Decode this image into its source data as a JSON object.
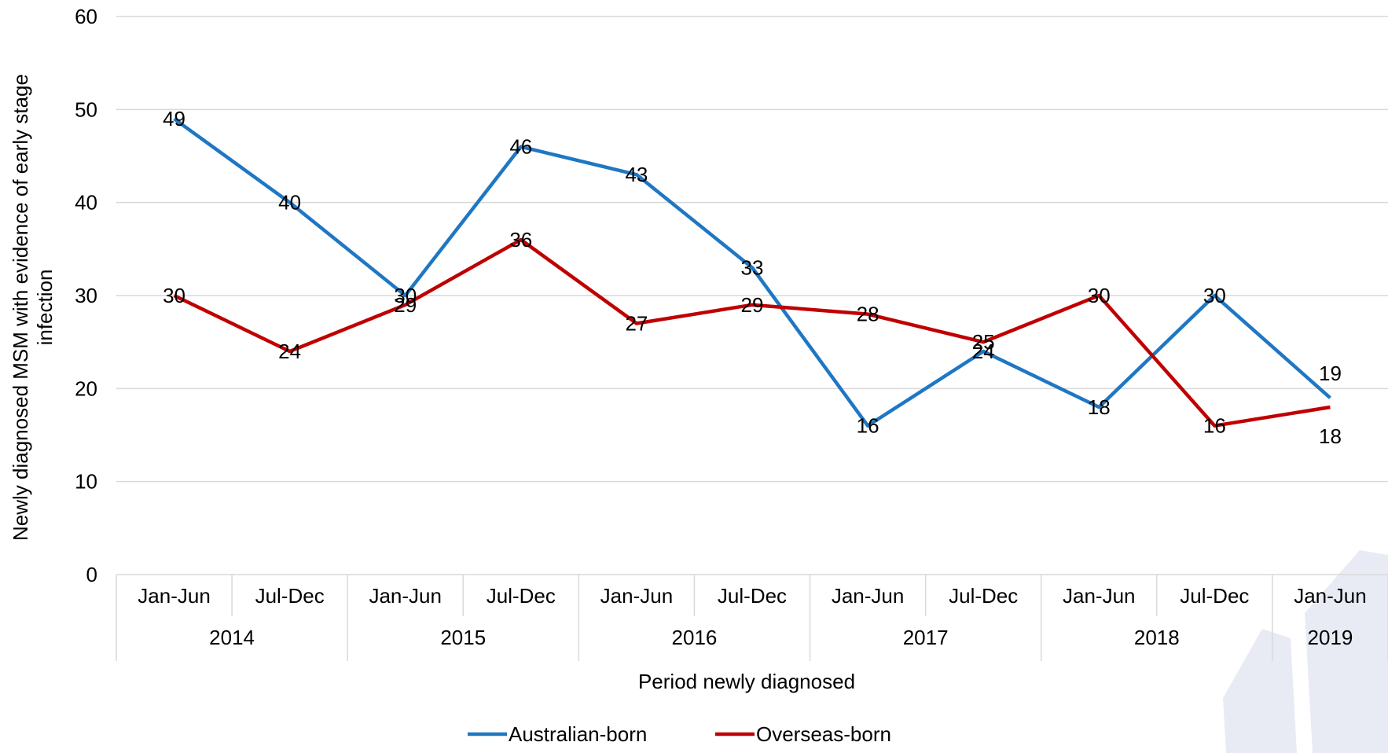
{
  "chart_data": {
    "type": "line",
    "title": "",
    "xlabel": "Period newly diagnosed",
    "ylabel": "Newly diagnosed MSM with evidence of early stage infection",
    "ylim": [
      0,
      60
    ],
    "yticks": [
      "0",
      "10",
      "20",
      "30",
      "40",
      "50",
      "60"
    ],
    "grid": true,
    "legend_position": "bottom",
    "categories": [
      "Jan-Jun",
      "Jul-Dec",
      "Jan-Jun",
      "Jul-Dec",
      "Jan-Jun",
      "Jul-Dec",
      "Jan-Jun",
      "Jul-Dec",
      "Jan-Jun",
      "Jul-Dec",
      "Jan-Jun"
    ],
    "years": [
      {
        "label": "2014",
        "span": 2
      },
      {
        "label": "2015",
        "span": 2
      },
      {
        "label": "2016",
        "span": 2
      },
      {
        "label": "2017",
        "span": 2
      },
      {
        "label": "2018",
        "span": 2
      },
      {
        "label": "2019",
        "span": 1
      }
    ],
    "series": [
      {
        "name": "Australian-born",
        "color": "#1f77c4",
        "values": [
          49,
          40,
          30,
          46,
          43,
          33,
          16,
          24,
          18,
          30,
          19
        ]
      },
      {
        "name": "Overseas-born",
        "color": "#c00000",
        "values": [
          30,
          24,
          29,
          36,
          27,
          29,
          28,
          25,
          30,
          16,
          18
        ]
      }
    ]
  }
}
